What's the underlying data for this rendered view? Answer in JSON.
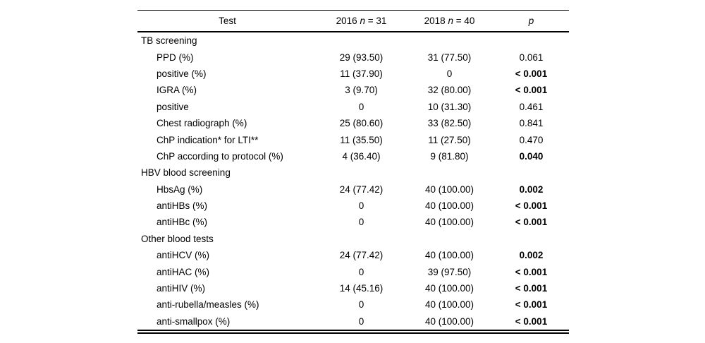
{
  "page": {
    "background_color": "#ffffff",
    "text_color": "#000000",
    "rule_color": "#000000"
  },
  "table": {
    "header": {
      "test": "Test",
      "col2016": {
        "prefix": "2016 ",
        "n": "n",
        "suffix": " = 31"
      },
      "col2018": {
        "prefix": "2018 ",
        "n": "n",
        "suffix": " = 40"
      },
      "p": "p"
    },
    "rows": [
      {
        "type": "section",
        "label": "TB screening",
        "v2016": "",
        "v2018": "",
        "p": "",
        "p_bold": false
      },
      {
        "type": "item",
        "label": "PPD (%)",
        "v2016": "29 (93.50)",
        "v2018": "31 (77.50)",
        "p": "0.061",
        "p_bold": false
      },
      {
        "type": "item",
        "label": "positive (%)",
        "v2016": "11 (37.90)",
        "v2018": "0",
        "p": "< 0.001",
        "p_bold": true
      },
      {
        "type": "item",
        "label": "IGRA (%)",
        "v2016": "3 (9.70)",
        "v2018": "32 (80.00)",
        "p": "< 0.001",
        "p_bold": true
      },
      {
        "type": "item",
        "label": "positive",
        "v2016": "0",
        "v2018": "10 (31.30)",
        "p": "0.461",
        "p_bold": false
      },
      {
        "type": "item",
        "label": "Chest radiograph (%)",
        "v2016": "25 (80.60)",
        "v2018": "33 (82.50)",
        "p": "0.841",
        "p_bold": false
      },
      {
        "type": "item",
        "label": "ChP indication* for LTI**",
        "v2016": "11 (35.50)",
        "v2018": "11 (27.50)",
        "p": "0.470",
        "p_bold": false
      },
      {
        "type": "item",
        "label": "ChP according to protocol (%)",
        "v2016": "4 (36.40)",
        "v2018": "9 (81.80)",
        "p": "0.040",
        "p_bold": true
      },
      {
        "type": "section",
        "label": "HBV blood screening",
        "v2016": "",
        "v2018": "",
        "p": "",
        "p_bold": false
      },
      {
        "type": "item",
        "label": "HbsAg (%)",
        "v2016": "24 (77.42)",
        "v2018": "40 (100.00)",
        "p": "0.002",
        "p_bold": true
      },
      {
        "type": "item",
        "label": "antiHBs (%)",
        "v2016": "0",
        "v2018": "40 (100.00)",
        "p": "< 0.001",
        "p_bold": true
      },
      {
        "type": "item",
        "label": "antiHBc (%)",
        "v2016": "0",
        "v2018": "40 (100.00)",
        "p": "< 0.001",
        "p_bold": true
      },
      {
        "type": "section",
        "label": "Other blood tests",
        "v2016": "",
        "v2018": "",
        "p": "",
        "p_bold": false
      },
      {
        "type": "item",
        "label": "antiHCV (%)",
        "v2016": "24 (77.42)",
        "v2018": "40 (100.00)",
        "p": "0.002",
        "p_bold": true
      },
      {
        "type": "item",
        "label": "antiHAC (%)",
        "v2016": "0",
        "v2018": "39 (97.50)",
        "p": "< 0.001",
        "p_bold": true
      },
      {
        "type": "item",
        "label": "antiHIV (%)",
        "v2016": "14 (45.16)",
        "v2018": "40 (100.00)",
        "p": "< 0.001",
        "p_bold": true
      },
      {
        "type": "item",
        "label": "anti-rubella/measles (%)",
        "v2016": "0",
        "v2018": "40 (100.00)",
        "p": "< 0.001",
        "p_bold": true
      },
      {
        "type": "item",
        "label": "anti-smallpox (%)",
        "v2016": "0",
        "v2018": "40 (100.00)",
        "p": "< 0.001",
        "p_bold": true
      }
    ]
  }
}
